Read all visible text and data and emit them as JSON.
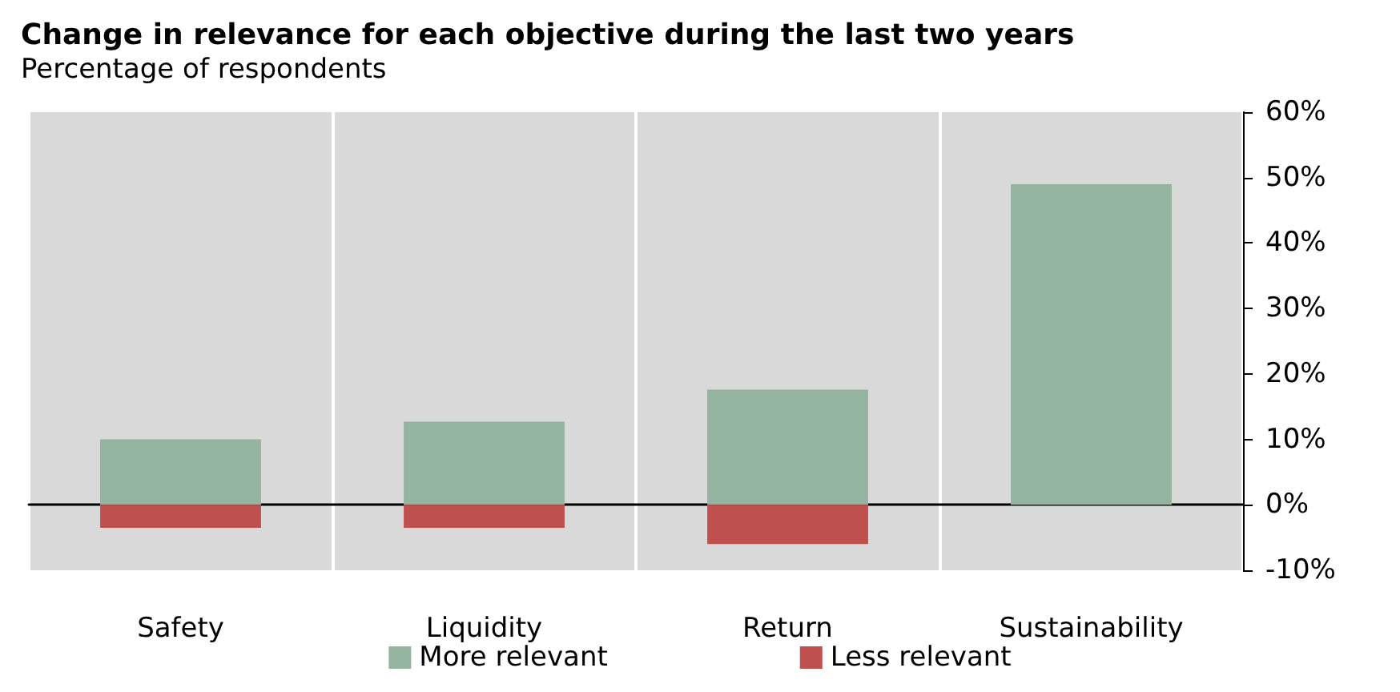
{
  "chart_data": {
    "type": "bar",
    "title": "Change in relevance for each objective during the last two years",
    "subtitle": "Percentage of respondents",
    "categories": [
      "Safety",
      "Liquidity",
      "Return",
      "Sustainability"
    ],
    "series": [
      {
        "name": "More relevant",
        "color": "#94b49f",
        "values": [
          10,
          12.7,
          17.6,
          49
        ]
      },
      {
        "name": "Less relevant",
        "color": "#c0504d",
        "values": [
          -3.5,
          -3.5,
          -6,
          0
        ]
      }
    ],
    "stacked": true,
    "ylim": [
      -10,
      60
    ],
    "yticks": [
      {
        "value": -10,
        "label": "-10%"
      },
      {
        "value": 0,
        "label": "0%"
      },
      {
        "value": 10,
        "label": "10%"
      },
      {
        "value": 20,
        "label": "20%"
      },
      {
        "value": 30,
        "label": "30%"
      },
      {
        "value": 40,
        "label": "40%"
      },
      {
        "value": 50,
        "label": "50%"
      },
      {
        "value": 60,
        "label": "60%"
      }
    ],
    "grid": "x",
    "legend": "bottom"
  }
}
